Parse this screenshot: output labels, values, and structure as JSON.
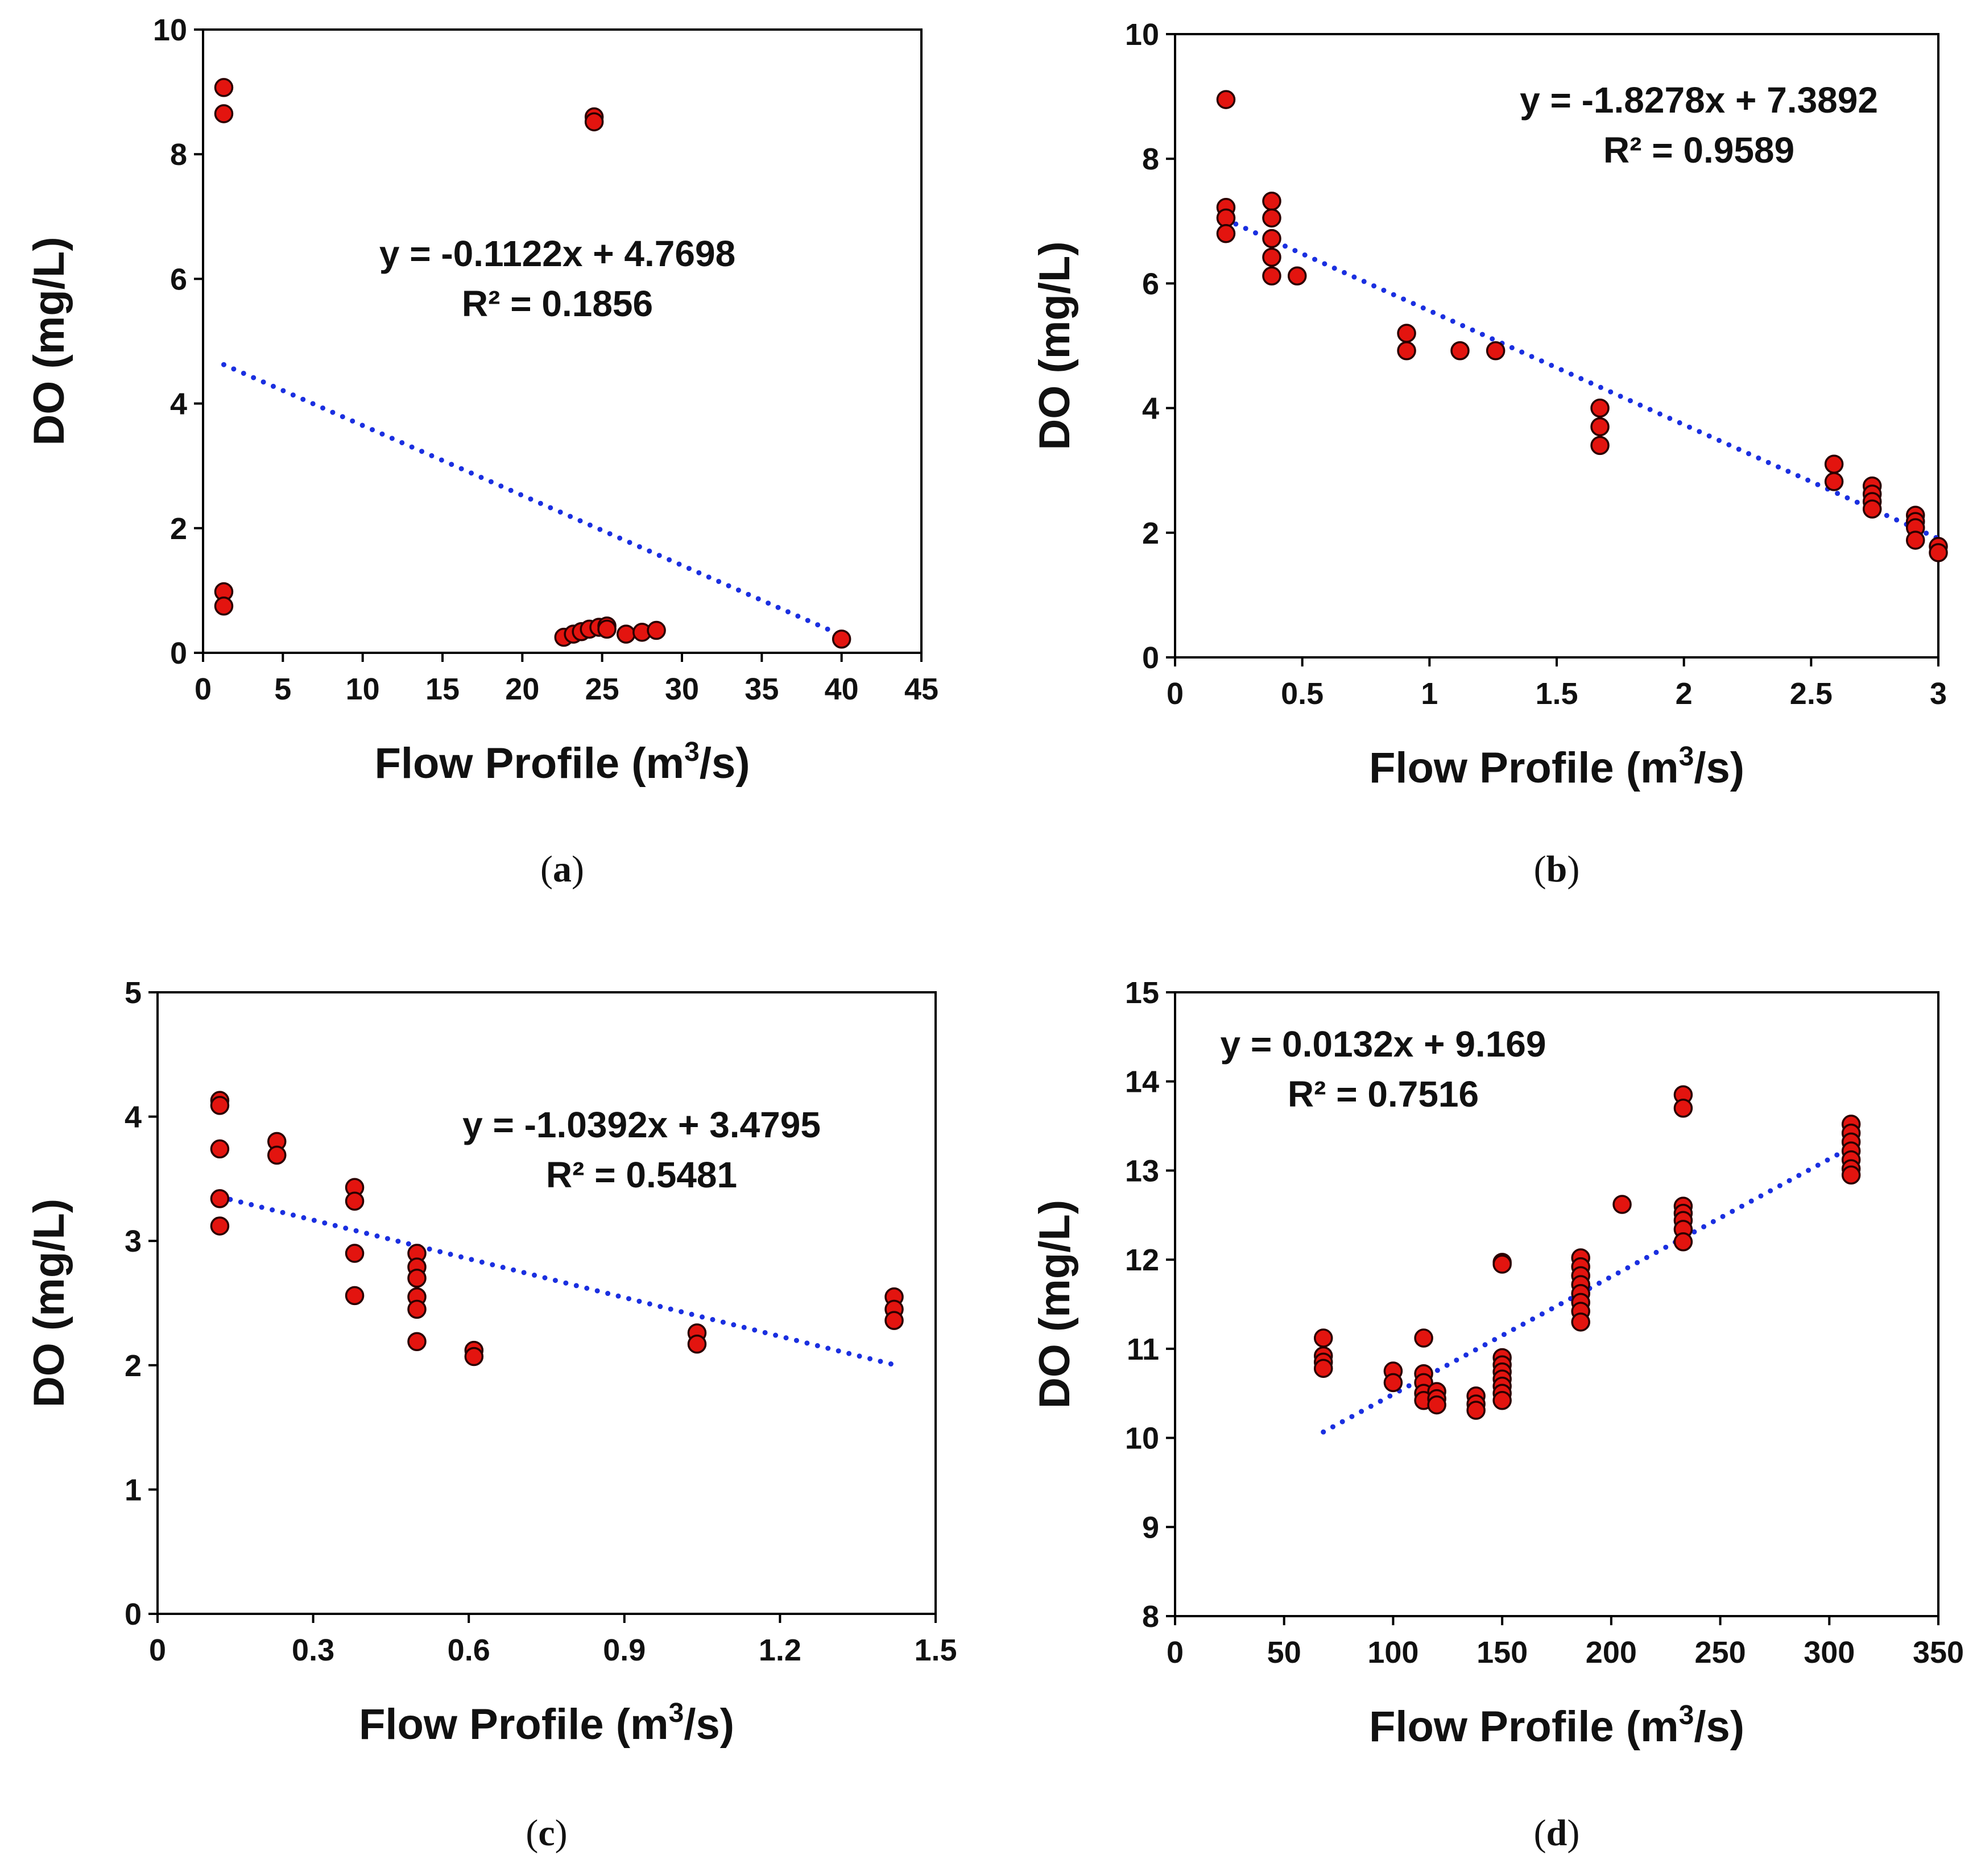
{
  "chart_data": [
    {
      "id": "a",
      "type": "scatter",
      "panel_label": "a",
      "xlabel": "Flow Profile (m",
      "xlabel_sup": "3",
      "xlabel_tail": "/s)",
      "ylabel": "DO (mg/L)",
      "xlim": [
        0,
        45
      ],
      "ylim": [
        0,
        10
      ],
      "xticks": [
        0,
        5,
        10,
        15,
        20,
        25,
        30,
        35,
        40,
        45
      ],
      "xtick_labels": [
        "0",
        "5",
        "10",
        "15",
        "20",
        "25",
        "30",
        "35",
        "40",
        "45"
      ],
      "yticks": [
        0,
        2,
        4,
        6,
        8,
        10
      ],
      "ytick_labels": [
        "0",
        "2",
        "4",
        "6",
        "8",
        "10"
      ],
      "equation": "y = -0.1122x + 4.7698",
      "r_squared": "R² = 0.1856",
      "trend": {
        "slope": -0.1122,
        "intercept": 4.7698,
        "x_range": [
          1.3,
          40
        ]
      },
      "points": [
        {
          "x": 1.3,
          "y": 9.07
        },
        {
          "x": 1.3,
          "y": 8.65
        },
        {
          "x": 1.3,
          "y": 0.98
        },
        {
          "x": 1.3,
          "y": 0.75
        },
        {
          "x": 24.5,
          "y": 8.6
        },
        {
          "x": 24.5,
          "y": 8.52
        },
        {
          "x": 22.6,
          "y": 0.25
        },
        {
          "x": 23.2,
          "y": 0.3
        },
        {
          "x": 23.7,
          "y": 0.34
        },
        {
          "x": 24.2,
          "y": 0.38
        },
        {
          "x": 24.8,
          "y": 0.41
        },
        {
          "x": 25.3,
          "y": 0.43
        },
        {
          "x": 25.3,
          "y": 0.38
        },
        {
          "x": 26.5,
          "y": 0.3
        },
        {
          "x": 27.5,
          "y": 0.33
        },
        {
          "x": 28.4,
          "y": 0.36
        },
        {
          "x": 40,
          "y": 0.22
        }
      ]
    },
    {
      "id": "b",
      "type": "scatter",
      "panel_label": "b",
      "xlabel": "Flow Profile (m",
      "xlabel_sup": "3",
      "xlabel_tail": "/s)",
      "ylabel": "DO (mg/L)",
      "xlim": [
        0,
        3
      ],
      "ylim": [
        0,
        10
      ],
      "xticks": [
        0,
        0.5,
        1,
        1.5,
        2,
        2.5,
        3
      ],
      "xtick_labels": [
        "0",
        "0.5",
        "1",
        "1.5",
        "2",
        "2.5",
        "3"
      ],
      "yticks": [
        0,
        2,
        4,
        6,
        8,
        10
      ],
      "ytick_labels": [
        "0",
        "2",
        "4",
        "6",
        "8",
        "10"
      ],
      "equation": "y = -1.8278x + 7.3892",
      "r_squared": "R² = 0.9589",
      "trend": {
        "slope": -1.8278,
        "intercept": 7.3892,
        "x_range": [
          0.2,
          3.0
        ]
      },
      "points": [
        {
          "x": 0.2,
          "y": 8.95
        },
        {
          "x": 0.2,
          "y": 7.22
        },
        {
          "x": 0.2,
          "y": 7.05
        },
        {
          "x": 0.2,
          "y": 6.8
        },
        {
          "x": 0.38,
          "y": 7.32
        },
        {
          "x": 0.38,
          "y": 7.05
        },
        {
          "x": 0.38,
          "y": 6.72
        },
        {
          "x": 0.38,
          "y": 6.42
        },
        {
          "x": 0.38,
          "y": 6.12
        },
        {
          "x": 0.48,
          "y": 6.12
        },
        {
          "x": 0.91,
          "y": 5.2
        },
        {
          "x": 0.91,
          "y": 4.92
        },
        {
          "x": 1.12,
          "y": 4.92
        },
        {
          "x": 1.26,
          "y": 4.92
        },
        {
          "x": 1.67,
          "y": 4.0
        },
        {
          "x": 1.67,
          "y": 3.7
        },
        {
          "x": 1.67,
          "y": 3.4
        },
        {
          "x": 2.59,
          "y": 3.1
        },
        {
          "x": 2.59,
          "y": 2.82
        },
        {
          "x": 2.74,
          "y": 2.75
        },
        {
          "x": 2.74,
          "y": 2.62
        },
        {
          "x": 2.74,
          "y": 2.5
        },
        {
          "x": 2.74,
          "y": 2.38
        },
        {
          "x": 2.91,
          "y": 2.28
        },
        {
          "x": 2.91,
          "y": 2.18
        },
        {
          "x": 2.91,
          "y": 2.08
        },
        {
          "x": 2.91,
          "y": 1.88
        },
        {
          "x": 3.0,
          "y": 1.78
        },
        {
          "x": 3.0,
          "y": 1.68
        }
      ]
    },
    {
      "id": "c",
      "type": "scatter",
      "panel_label": "c",
      "xlabel": "Flow Profile (m",
      "xlabel_sup": "3",
      "xlabel_tail": "/s)",
      "ylabel": "DO (mg/L)",
      "xlim": [
        0,
        1.5
      ],
      "ylim": [
        0,
        5
      ],
      "xticks": [
        0,
        0.3,
        0.6,
        0.9,
        1.2,
        1.5
      ],
      "xtick_labels": [
        "0",
        "0.3",
        "0.6",
        "0.9",
        "1.2",
        "1.5"
      ],
      "yticks": [
        0,
        1,
        2,
        3,
        4,
        5
      ],
      "ytick_labels": [
        "0",
        "1",
        "2",
        "3",
        "4",
        "5"
      ],
      "equation": "y = -1.0392x + 3.4795",
      "r_squared": "R² = 0.5481",
      "trend": {
        "slope": -1.0392,
        "intercept": 3.4795,
        "x_range": [
          0.12,
          1.42
        ]
      },
      "points": [
        {
          "x": 0.12,
          "y": 4.13
        },
        {
          "x": 0.12,
          "y": 4.09
        },
        {
          "x": 0.12,
          "y": 3.74
        },
        {
          "x": 0.12,
          "y": 3.34
        },
        {
          "x": 0.12,
          "y": 3.12
        },
        {
          "x": 0.23,
          "y": 3.8
        },
        {
          "x": 0.23,
          "y": 3.69
        },
        {
          "x": 0.38,
          "y": 3.43
        },
        {
          "x": 0.38,
          "y": 3.32
        },
        {
          "x": 0.38,
          "y": 2.9
        },
        {
          "x": 0.38,
          "y": 2.56
        },
        {
          "x": 0.5,
          "y": 2.9
        },
        {
          "x": 0.5,
          "y": 2.79
        },
        {
          "x": 0.5,
          "y": 2.7
        },
        {
          "x": 0.5,
          "y": 2.55
        },
        {
          "x": 0.5,
          "y": 2.45
        },
        {
          "x": 0.5,
          "y": 2.19
        },
        {
          "x": 0.61,
          "y": 2.12
        },
        {
          "x": 0.61,
          "y": 2.07
        },
        {
          "x": 1.04,
          "y": 2.26
        },
        {
          "x": 1.04,
          "y": 2.17
        },
        {
          "x": 1.42,
          "y": 2.55
        },
        {
          "x": 1.42,
          "y": 2.45
        },
        {
          "x": 1.42,
          "y": 2.36
        }
      ]
    },
    {
      "id": "d",
      "type": "scatter",
      "panel_label": "d",
      "xlabel": "Flow Profile (m",
      "xlabel_sup": "3",
      "xlabel_tail": "/s)",
      "ylabel": "DO (mg/L)",
      "xlim": [
        0,
        350
      ],
      "ylim": [
        8,
        15
      ],
      "xticks": [
        0,
        50,
        100,
        150,
        200,
        250,
        300,
        350
      ],
      "xtick_labels": [
        "0",
        "50",
        "100",
        "150",
        "200",
        "250",
        "300",
        "350"
      ],
      "yticks": [
        8,
        9,
        10,
        11,
        12,
        13,
        14,
        15
      ],
      "ytick_labels": [
        "8",
        "9",
        "10",
        "11",
        "12",
        "13",
        "14",
        "15"
      ],
      "equation": "y = 0.0132x + 9.169",
      "r_squared": "R² = 0.7516",
      "trend": {
        "slope": 0.0132,
        "intercept": 9.169,
        "x_range": [
          68,
          310
        ]
      },
      "points": [
        {
          "x": 68,
          "y": 11.12
        },
        {
          "x": 68,
          "y": 10.92
        },
        {
          "x": 68,
          "y": 10.85
        },
        {
          "x": 68,
          "y": 10.78
        },
        {
          "x": 100,
          "y": 10.75
        },
        {
          "x": 100,
          "y": 10.62
        },
        {
          "x": 114,
          "y": 11.12
        },
        {
          "x": 114,
          "y": 10.72
        },
        {
          "x": 114,
          "y": 10.62
        },
        {
          "x": 114,
          "y": 10.5
        },
        {
          "x": 114,
          "y": 10.42
        },
        {
          "x": 120,
          "y": 10.52
        },
        {
          "x": 120,
          "y": 10.44
        },
        {
          "x": 120,
          "y": 10.37
        },
        {
          "x": 138,
          "y": 10.47
        },
        {
          "x": 138,
          "y": 10.38
        },
        {
          "x": 138,
          "y": 10.31
        },
        {
          "x": 150,
          "y": 11.97
        },
        {
          "x": 150,
          "y": 11.95
        },
        {
          "x": 150,
          "y": 10.9
        },
        {
          "x": 150,
          "y": 10.82
        },
        {
          "x": 150,
          "y": 10.74
        },
        {
          "x": 150,
          "y": 10.66
        },
        {
          "x": 150,
          "y": 10.58
        },
        {
          "x": 150,
          "y": 10.5
        },
        {
          "x": 150,
          "y": 10.42
        },
        {
          "x": 186,
          "y": 12.02
        },
        {
          "x": 186,
          "y": 11.92
        },
        {
          "x": 186,
          "y": 11.82
        },
        {
          "x": 186,
          "y": 11.72
        },
        {
          "x": 186,
          "y": 11.62
        },
        {
          "x": 186,
          "y": 11.52
        },
        {
          "x": 186,
          "y": 11.42
        },
        {
          "x": 186,
          "y": 11.3
        },
        {
          "x": 205,
          "y": 12.62
        },
        {
          "x": 233,
          "y": 13.85
        },
        {
          "x": 233,
          "y": 13.7
        },
        {
          "x": 233,
          "y": 12.6
        },
        {
          "x": 233,
          "y": 12.52
        },
        {
          "x": 233,
          "y": 12.44
        },
        {
          "x": 233,
          "y": 12.34
        },
        {
          "x": 233,
          "y": 12.2
        },
        {
          "x": 310,
          "y": 13.52
        },
        {
          "x": 310,
          "y": 13.42
        },
        {
          "x": 310,
          "y": 13.32
        },
        {
          "x": 310,
          "y": 13.22
        },
        {
          "x": 310,
          "y": 13.12
        },
        {
          "x": 310,
          "y": 13.02
        },
        {
          "x": 310,
          "y": 12.95
        }
      ]
    }
  ],
  "colors": {
    "marker_fill": "#e3140f",
    "marker_edge": "#2a0000",
    "trend": "#1a2fe0",
    "axis": "#000000"
  }
}
